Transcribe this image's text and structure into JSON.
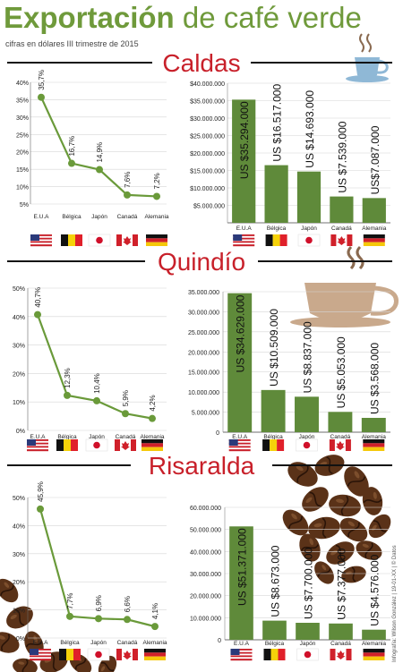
{
  "header": {
    "title_bold": "Exportación",
    "title_rest": "de café verde",
    "subtitle": "cifras en dólares III trimestre de 2015",
    "credit": "Infografía: Wilson González | 19-01-XX | © Datos"
  },
  "colors": {
    "accent_green": "#6f9a3b",
    "bar_green": "#5f8a3a",
    "line_green": "#6a9a3a",
    "section_red": "#c8202a",
    "grid": "#d6d6d6",
    "coffee_brown": "#5a3218",
    "cup_tan": "#c9a98c",
    "cup_blue": "#8fb8d6"
  },
  "flags": [
    "usa-flag-icon",
    "belgium-flag-icon",
    "japan-flag-icon",
    "canada-flag-icon",
    "germany-flag-icon"
  ],
  "sections": [
    {
      "name": "Caldas",
      "line_chart": {
        "type": "line",
        "categories": [
          "E.U.A",
          "Bélgica",
          "Japón",
          "Canadá",
          "Alemania"
        ],
        "values": [
          35.7,
          16.7,
          14.9,
          7.6,
          7.2
        ],
        "value_labels": [
          "35,7%",
          "16,7%",
          "14,9%",
          "7,6%",
          "7,2%"
        ],
        "yticks": [
          "40%",
          "35%",
          "30%",
          "25%",
          "20%",
          "15%",
          "10%",
          "5%"
        ],
        "ylim": [
          5,
          40
        ]
      },
      "bar_chart": {
        "type": "bar",
        "categories": [
          "E.U.A",
          "Bélgica",
          "Japón",
          "Canadá",
          "Alemania"
        ],
        "values": [
          35294000,
          16517000,
          14693000,
          7539000,
          7087000
        ],
        "value_labels": [
          "US $35.294.000",
          "US $16.517.000",
          "US $14.693.000",
          "US $7.539.000",
          "US$7.087.000"
        ],
        "yticks": [
          "$40.000.000",
          "$35.000.000",
          "$30.000.000",
          "$25.000.000",
          "$20.000.000",
          "$15.000.000",
          "$10.000.000",
          "$5.000.000"
        ],
        "ylim": [
          0,
          40000000
        ]
      }
    },
    {
      "name": "Quindío",
      "line_chart": {
        "type": "line",
        "categories": [
          "E.U.A",
          "Bélgica",
          "Japón",
          "Canadá",
          "Alemania"
        ],
        "values": [
          40.7,
          12.3,
          10.4,
          5.9,
          4.2
        ],
        "value_labels": [
          "40,7%",
          "12,3%",
          "10,4%",
          "5,9%",
          "4,2%"
        ],
        "yticks": [
          "50%",
          "40%",
          "30%",
          "20%",
          "10%",
          "0%"
        ],
        "ylim": [
          0,
          50
        ]
      },
      "bar_chart": {
        "type": "bar",
        "categories": [
          "E.U.A",
          "Bélgica",
          "Japón",
          "Canadá",
          "Alemania"
        ],
        "values": [
          34629000,
          10509000,
          8837000,
          5053000,
          3568000
        ],
        "value_labels": [
          "US $34.629.000",
          "US $10.509.000",
          "US $8.837.000",
          "US $5.053.000",
          "US $3.568.000"
        ],
        "yticks": [
          "35.000.000",
          "30.000.000",
          "25.000.000",
          "20.000.000",
          "15.000.000",
          "10.000.000",
          "5.000.000",
          "0"
        ],
        "ylim": [
          0,
          35000000
        ]
      }
    },
    {
      "name": "Risaralda",
      "line_chart": {
        "type": "line",
        "categories": [
          "E.U.A",
          "Bélgica",
          "Japón",
          "Canadá",
          "Alemania"
        ],
        "values": [
          45.9,
          7.7,
          6.9,
          6.6,
          4.1
        ],
        "value_labels": [
          "45,9%",
          "7,7%",
          "6,9%",
          "6,6%",
          "4,1%"
        ],
        "yticks": [
          "50%",
          "40%",
          "30%",
          "20%",
          "10%",
          "0%"
        ],
        "ylim": [
          0,
          50
        ]
      },
      "bar_chart": {
        "type": "bar",
        "categories": [
          "E.U.A",
          "Bélgica",
          "Japón",
          "Canadá",
          "Alemania"
        ],
        "values": [
          51371000,
          8673000,
          7700000,
          7377000,
          4576000
        ],
        "value_labels": [
          "US $51.371.000",
          "US $8.673.000",
          "US $7.700.000",
          "US $7.377.000",
          "US $4.576.000"
        ],
        "yticks": [
          "60.000.000",
          "50.000.000",
          "40.000.000",
          "30.000.000",
          "20.000.000",
          "10.000.000",
          "0"
        ],
        "ylim": [
          0,
          60000000
        ]
      }
    }
  ],
  "chart_data": [
    {
      "type": "line",
      "title": "Caldas",
      "categories": [
        "E.U.A",
        "Bélgica",
        "Japón",
        "Canadá",
        "Alemania"
      ],
      "values": [
        35.7,
        16.7,
        14.9,
        7.6,
        7.2
      ],
      "ylim": [
        5,
        40
      ]
    },
    {
      "type": "bar",
      "title": "Caldas",
      "categories": [
        "E.U.A",
        "Bélgica",
        "Japón",
        "Canadá",
        "Alemania"
      ],
      "values": [
        35294000,
        16517000,
        14693000,
        7539000,
        7087000
      ],
      "ylim": [
        0,
        40000000
      ]
    },
    {
      "type": "line",
      "title": "Quindío",
      "categories": [
        "E.U.A",
        "Bélgica",
        "Japón",
        "Canadá",
        "Alemania"
      ],
      "values": [
        40.7,
        12.3,
        10.4,
        5.9,
        4.2
      ],
      "ylim": [
        0,
        50
      ]
    },
    {
      "type": "bar",
      "title": "Quindío",
      "categories": [
        "E.U.A",
        "Bélgica",
        "Japón",
        "Canadá",
        "Alemania"
      ],
      "values": [
        34629000,
        10509000,
        8837000,
        5053000,
        3568000
      ],
      "ylim": [
        0,
        35000000
      ]
    },
    {
      "type": "line",
      "title": "Risaralda",
      "categories": [
        "E.U.A",
        "Bélgica",
        "Japón",
        "Canadá",
        "Alemania"
      ],
      "values": [
        45.9,
        7.7,
        6.9,
        6.6,
        4.1
      ],
      "ylim": [
        0,
        50
      ]
    },
    {
      "type": "bar",
      "title": "Risaralda",
      "categories": [
        "E.U.A",
        "Bélgica",
        "Japón",
        "Canadá",
        "Alemania"
      ],
      "values": [
        51371000,
        8673000,
        7700000,
        7377000,
        4576000
      ],
      "ylim": [
        0,
        60000000
      ]
    }
  ]
}
